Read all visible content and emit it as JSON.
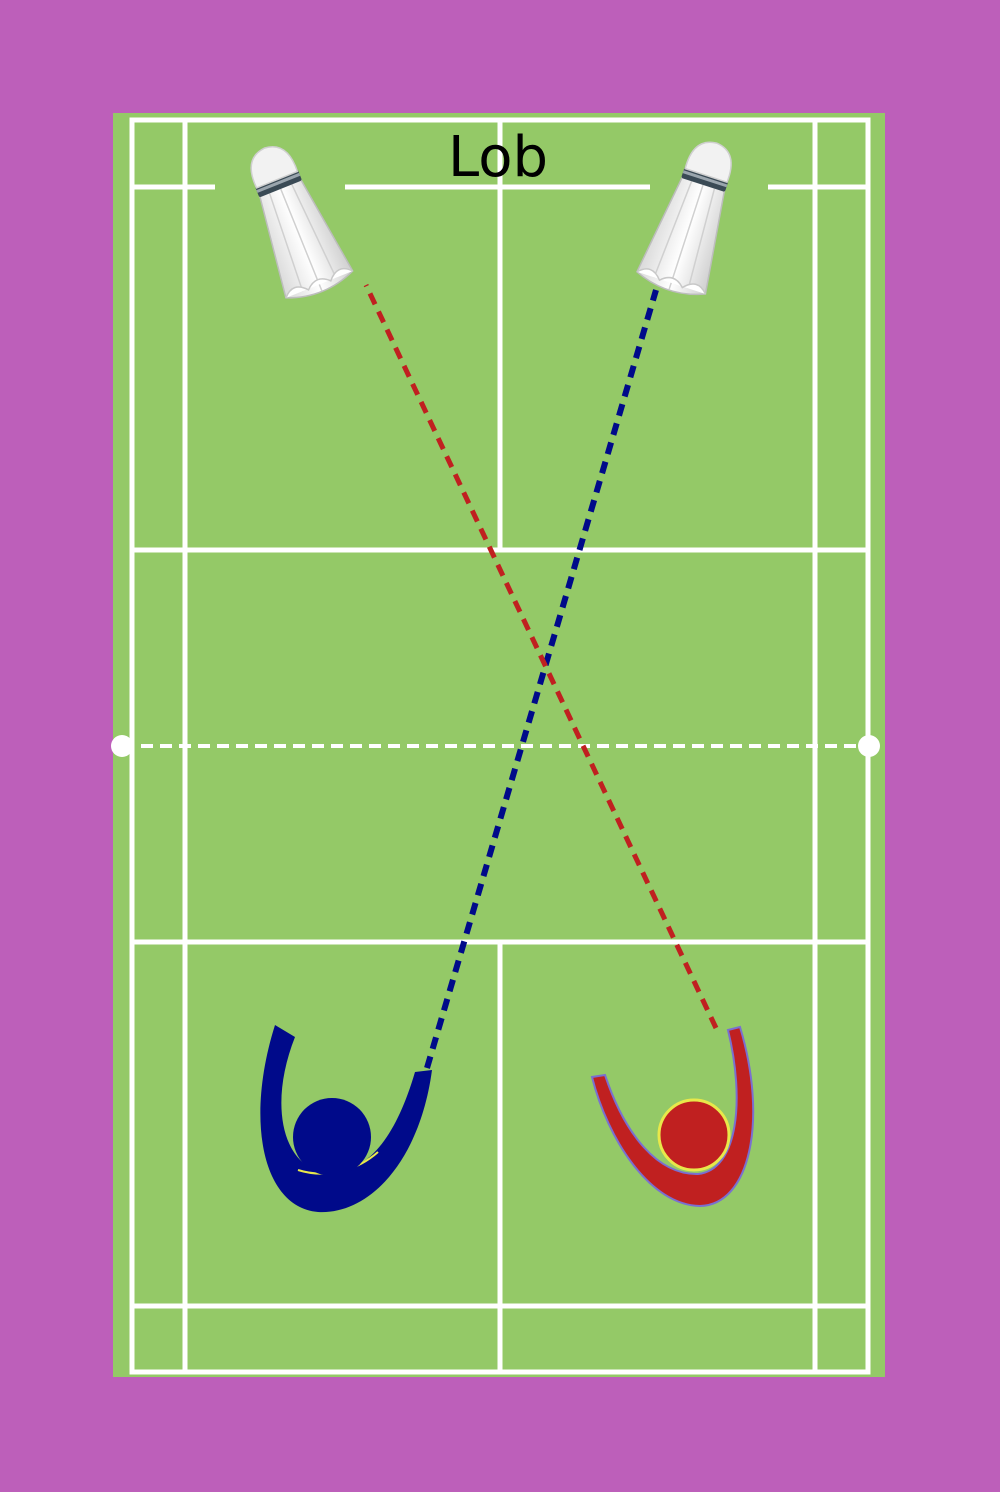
{
  "title": "Lob",
  "colors": {
    "background": "#bd5fba",
    "court": "#94c967",
    "court_lines": "#ffffff",
    "blue_player": "#000a8a",
    "red_player": "#c02020",
    "red_player_outline": "#7a6fd0",
    "red_player_head_outline": "#e8e84a",
    "shuttle_feathers": "#f4f4f4",
    "shuttle_band": "#3a4a55"
  },
  "icons": {
    "shuttle_left": "shuttlecock-icon",
    "shuttle_right": "shuttlecock-icon",
    "player_blue": "player-figure-icon",
    "player_red": "player-figure-icon"
  },
  "trajectories": [
    {
      "player": "blue",
      "style": "dashed"
    },
    {
      "player": "red",
      "style": "dashed"
    }
  ]
}
